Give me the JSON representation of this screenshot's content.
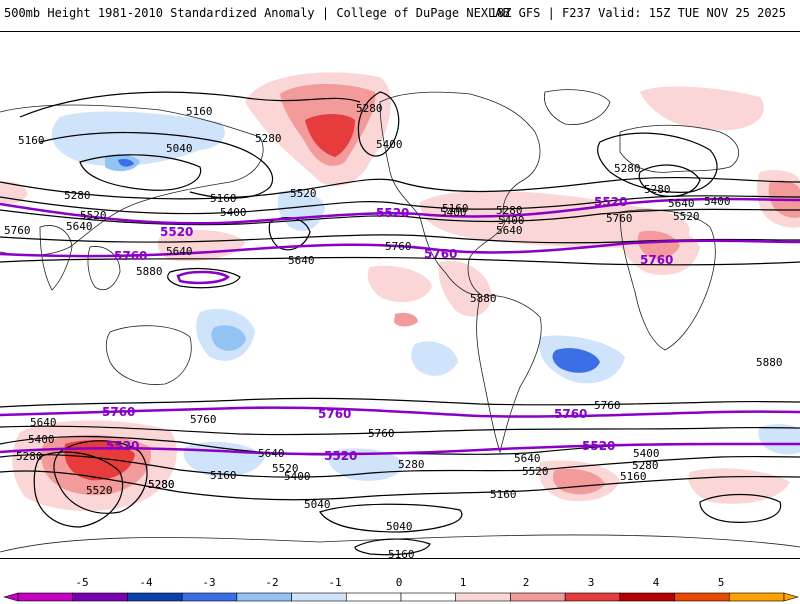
{
  "header": {
    "left_title": "500mb Height 1981-2010 Standardized Anomaly | College of DuPage NEXLAB",
    "right_title": "18Z GFS | F237 Valid: 15Z TUE NOV 25 2025"
  },
  "colors": {
    "contour": "#000000",
    "highlight_contour": "#8a00c8",
    "coast": "#222222",
    "neg_light": "#cfe3fb",
    "neg_mid": "#93c3f3",
    "neg_strong": "#3c6ee6",
    "pos_light": "#fbd6d6",
    "pos_mid": "#f39a9a",
    "pos_strong": "#e63c3c"
  },
  "contour_labels": {
    "black": [
      "5160",
      "5280",
      "5160",
      "5280",
      "5400",
      "5040",
      "5280",
      "5160",
      "5400",
      "5520",
      "5520",
      "5640",
      "5760",
      "5880",
      "5640",
      "5280",
      "5400",
      "5640",
      "5880",
      "5160",
      "5280",
      "5400",
      "5520",
      "5640",
      "5760",
      "5760",
      "5400",
      "5280",
      "5640",
      "5880",
      "5640",
      "5400",
      "5280",
      "5760",
      "5760",
      "5640",
      "5520",
      "5400",
      "5280",
      "5160",
      "5640",
      "5520",
      "5280",
      "5400",
      "5280",
      "5160",
      "5040",
      "5160",
      "5040",
      "5160",
      "5520",
      "5760",
      "5280"
    ],
    "purple": [
      "5520",
      "5760",
      "5520",
      "5760",
      "5520",
      "5760",
      "5760",
      "5760",
      "5520",
      "5520",
      "5760",
      "5520"
    ]
  },
  "colorbar": {
    "ticks": [
      "-5",
      "-4",
      "-3",
      "-2",
      "-1",
      "0",
      "1",
      "2",
      "3",
      "4",
      "5"
    ],
    "colors": [
      "#c400c4",
      "#7a00b4",
      "#0b3fb0",
      "#3c6ee6",
      "#93c3f3",
      "#cfe3fb",
      "#ffffff",
      "#ffffff",
      "#fbd6d6",
      "#f39a9a",
      "#e63c3c",
      "#b40000",
      "#e84800",
      "#ffa000"
    ]
  }
}
